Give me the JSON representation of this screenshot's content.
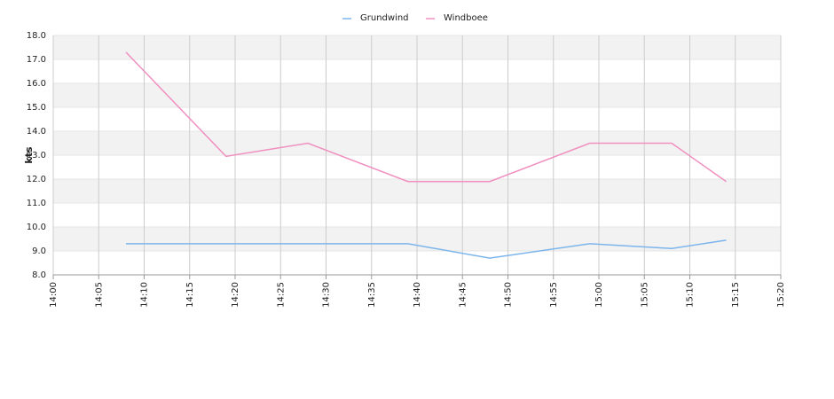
{
  "chart_data": {
    "type": "line",
    "y_label": "kts",
    "x": [
      "14:08",
      "14:19",
      "14:28",
      "14:39",
      "14:48",
      "14:59",
      "15:08",
      "15:14"
    ],
    "series": [
      {
        "name": "Grundwind",
        "color": "#7cb5ec",
        "values": [
          9.3,
          9.3,
          9.3,
          9.3,
          8.7,
          9.3,
          9.1,
          9.45
        ]
      },
      {
        "name": "Windboee",
        "color": "#f08fc0",
        "values": [
          17.3,
          12.95,
          13.5,
          11.9,
          11.9,
          13.5,
          13.5,
          11.9
        ]
      }
    ],
    "xlim": [
      "14:00",
      "15:20"
    ],
    "xticks": [
      "14:00",
      "14:05",
      "14:10",
      "14:15",
      "14:20",
      "14:25",
      "14:30",
      "14:35",
      "14:40",
      "14:45",
      "14:50",
      "14:55",
      "15:00",
      "15:05",
      "15:10",
      "15:15",
      "15:20"
    ],
    "ylim": [
      8,
      18
    ],
    "yticks": [
      {
        "value": 8,
        "label": "8.0"
      },
      {
        "value": 9,
        "label": "9.0"
      },
      {
        "value": 10,
        "label": "10.0"
      },
      {
        "value": 11,
        "label": "11.0"
      },
      {
        "value": 12,
        "label": "12.0"
      },
      {
        "value": 13,
        "label": "13.0"
      },
      {
        "value": 14,
        "label": "14.0"
      },
      {
        "value": 15,
        "label": "15.0"
      },
      {
        "value": 16,
        "label": "16.0"
      },
      {
        "value": 17,
        "label": "17.0"
      },
      {
        "value": 18,
        "label": "18.0"
      }
    ],
    "grid": true,
    "legend": "top"
  }
}
